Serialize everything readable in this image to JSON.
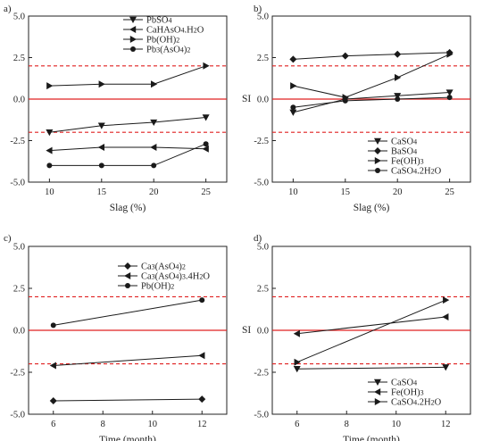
{
  "figure": {
    "panels": [
      {
        "label": "a)",
        "type": "line",
        "xlabel": "Slag (%)",
        "ylabel": "",
        "x": [
          10,
          15,
          20,
          25
        ],
        "xticks": [
          10,
          15,
          20,
          25
        ],
        "xlim": [
          8,
          27
        ],
        "ylim": [
          -5.0,
          5.0
        ],
        "yticks": [
          "5.0",
          "2.5",
          "0.0",
          "-2.5",
          "-5.0"
        ],
        "ytick_values": [
          5.0,
          2.5,
          0.0,
          -2.5,
          -5.0
        ],
        "ref_solid": 0.0,
        "ref_dashed": [
          2.0,
          -2.0
        ],
        "legend_position": "top-right",
        "series": [
          {
            "name": "PbSO4",
            "marker": "tri-down",
            "values": [
              -2.0,
              -1.6,
              -1.4,
              -1.1
            ]
          },
          {
            "name": "CaHAsO4.H2O",
            "marker": "tri-left",
            "values": [
              -3.1,
              -2.9,
              -2.9,
              -3.0
            ]
          },
          {
            "name": "Pb(OH)2",
            "marker": "tri-right",
            "values": [
              0.8,
              0.9,
              0.9,
              2.0
            ]
          },
          {
            "name": "Pb3(AsO4)2",
            "marker": "circle",
            "values": [
              -4.0,
              -4.0,
              -4.0,
              -2.7
            ]
          }
        ]
      },
      {
        "label": "b)",
        "type": "line",
        "xlabel": "Slag (%)",
        "ylabel": "SI",
        "x": [
          10,
          15,
          20,
          25
        ],
        "xticks": [
          10,
          15,
          20,
          25
        ],
        "xlim": [
          8,
          27
        ],
        "ylim": [
          -5.0,
          5.0
        ],
        "yticks": [
          "5.0",
          "2.5",
          "0.0",
          "-2.5",
          "-5.0"
        ],
        "ytick_values": [
          5.0,
          2.5,
          0.0,
          -2.5,
          -5.0
        ],
        "ref_solid": 0.0,
        "ref_dashed": [
          2.0,
          -2.0
        ],
        "legend_position": "bottom-right",
        "series": [
          {
            "name": "CaSO4",
            "marker": "tri-down",
            "values": [
              -0.8,
              0.0,
              0.2,
              0.4
            ]
          },
          {
            "name": "BaSO4",
            "marker": "diamond",
            "values": [
              2.4,
              2.6,
              2.7,
              2.8
            ]
          },
          {
            "name": "Fe(OH)3",
            "marker": "tri-right",
            "values": [
              0.8,
              0.1,
              1.3,
              2.7
            ]
          },
          {
            "name": "CaSO4.2H2O",
            "marker": "circle",
            "values": [
              -0.5,
              -0.1,
              0.0,
              0.1
            ]
          }
        ]
      },
      {
        "label": "c)",
        "type": "line",
        "xlabel": "Time (month)",
        "ylabel": "",
        "x": [
          6,
          12
        ],
        "xticks": [
          6,
          8,
          10,
          12
        ],
        "xlim": [
          5,
          13
        ],
        "ylim": [
          -5.0,
          5.0
        ],
        "yticks": [
          "5.0",
          "2.5",
          "0.0",
          "-2.5",
          "-5.0"
        ],
        "ytick_values": [
          5.0,
          2.5,
          0.0,
          -2.5,
          -5.0
        ],
        "ref_solid": 0.0,
        "ref_dashed": [
          2.0,
          -2.0
        ],
        "legend_position": "top-right",
        "series": [
          {
            "name": "Ca3(AsO4)2",
            "marker": "diamond",
            "values": [
              -4.2,
              -4.1
            ]
          },
          {
            "name": "Ca3(AsO4)3.4H2O",
            "marker": "tri-left",
            "values": [
              -2.1,
              -1.5
            ]
          },
          {
            "name": "Pb(OH)2",
            "marker": "circle",
            "values": [
              0.3,
              1.8
            ]
          }
        ]
      },
      {
        "label": "d)",
        "type": "line",
        "xlabel": "Time (month)",
        "ylabel": "SI",
        "x": [
          6,
          12
        ],
        "xticks": [
          6,
          8,
          10,
          12
        ],
        "xlim": [
          5,
          13
        ],
        "ylim": [
          -5.0,
          5.0
        ],
        "yticks": [
          "5.0",
          "2.5",
          "0.0",
          "-2.5",
          "-5.0"
        ],
        "ytick_values": [
          5.0,
          2.5,
          0.0,
          -2.5,
          -5.0
        ],
        "ref_solid": 0.0,
        "ref_dashed": [
          2.0,
          -2.0
        ],
        "legend_position": "bottom-right",
        "series": [
          {
            "name": "CaSO4",
            "marker": "tri-down",
            "values": [
              -2.3,
              -2.2
            ]
          },
          {
            "name": "Fe(OH)3",
            "marker": "tri-left",
            "values": [
              -0.2,
              0.8
            ]
          },
          {
            "name": "CaSO4.2H2O",
            "marker": "tri-right",
            "values": [
              -1.9,
              1.8
            ]
          }
        ]
      }
    ],
    "colors": {
      "axis": "#222222",
      "series": "#1a1a1a",
      "solid_ref": "#e02020",
      "dashed_ref": "#e02020"
    }
  }
}
